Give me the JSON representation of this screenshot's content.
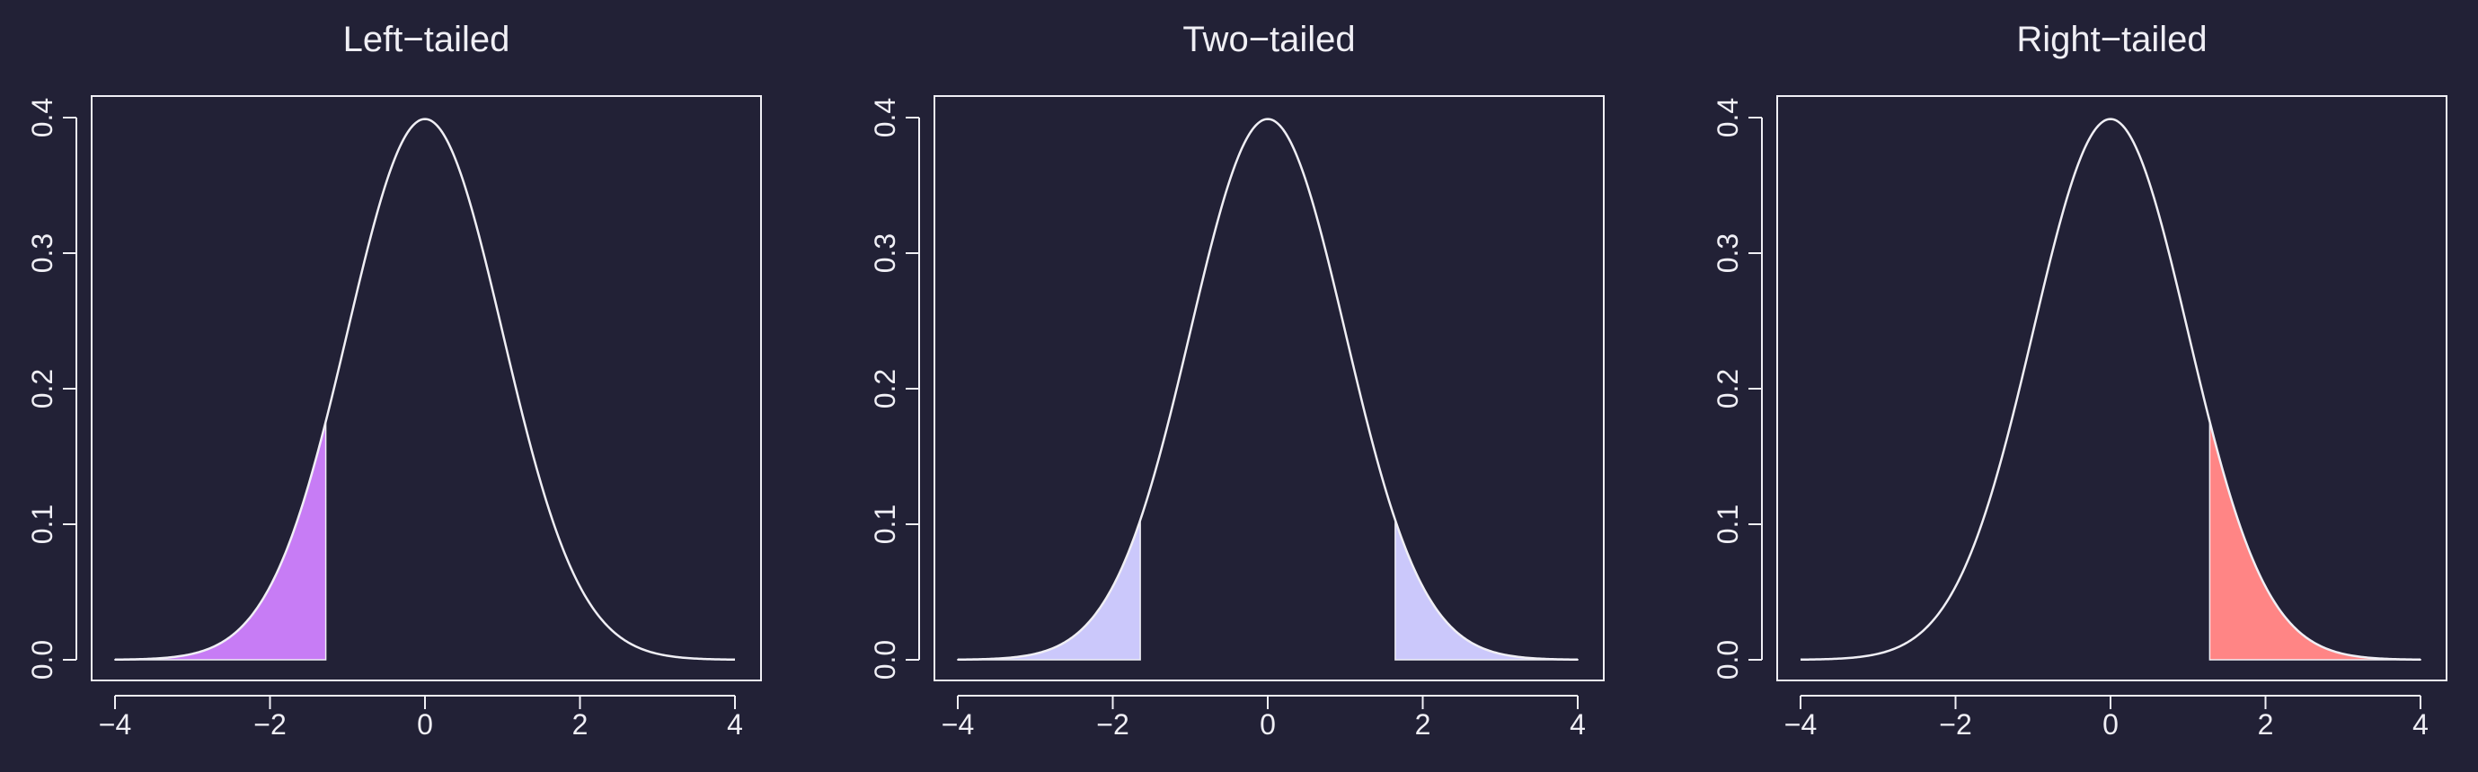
{
  "theme": {
    "background": "#222136",
    "foreground": "#f0eff5"
  },
  "chart_data": [
    {
      "type": "area",
      "title": "Left−tailed",
      "distribution": "standard normal density",
      "x_range": [
        -4,
        4
      ],
      "ylim": [
        0,
        0.4
      ],
      "xticks": [
        -4,
        -2,
        0,
        2,
        4
      ],
      "xtick_labels": [
        "−4",
        "−2",
        "0",
        "2",
        "4"
      ],
      "yticks": [
        0,
        0.1,
        0.2,
        0.3,
        0.4
      ],
      "ytick_labels": [
        "0.0",
        "0.1",
        "0.2",
        "0.3",
        "0.4"
      ],
      "shaded_regions": [
        {
          "from": -4,
          "to": -1.28,
          "color": "#c77cf5"
        }
      ],
      "grid": false
    },
    {
      "type": "area",
      "title": "Two−tailed",
      "distribution": "standard normal density",
      "x_range": [
        -4,
        4
      ],
      "ylim": [
        0,
        0.4
      ],
      "xticks": [
        -4,
        -2,
        0,
        2,
        4
      ],
      "xtick_labels": [
        "−4",
        "−2",
        "0",
        "2",
        "4"
      ],
      "yticks": [
        0,
        0.1,
        0.2,
        0.3,
        0.4
      ],
      "ytick_labels": [
        "0.0",
        "0.1",
        "0.2",
        "0.3",
        "0.4"
      ],
      "shaded_regions": [
        {
          "from": -4,
          "to": -1.645,
          "color": "#cbc8fb"
        },
        {
          "from": 1.645,
          "to": 4,
          "color": "#cbc8fb"
        }
      ],
      "grid": false
    },
    {
      "type": "area",
      "title": "Right−tailed",
      "distribution": "standard normal density",
      "x_range": [
        -4,
        4
      ],
      "ylim": [
        0,
        0.4
      ],
      "xticks": [
        -4,
        -2,
        0,
        2,
        4
      ],
      "xtick_labels": [
        "−4",
        "−2",
        "0",
        "2",
        "4"
      ],
      "yticks": [
        0,
        0.1,
        0.2,
        0.3,
        0.4
      ],
      "ytick_labels": [
        "0.0",
        "0.1",
        "0.2",
        "0.3",
        "0.4"
      ],
      "shaded_regions": [
        {
          "from": 1.28,
          "to": 4,
          "color": "#ff8585"
        }
      ],
      "grid": false
    }
  ]
}
